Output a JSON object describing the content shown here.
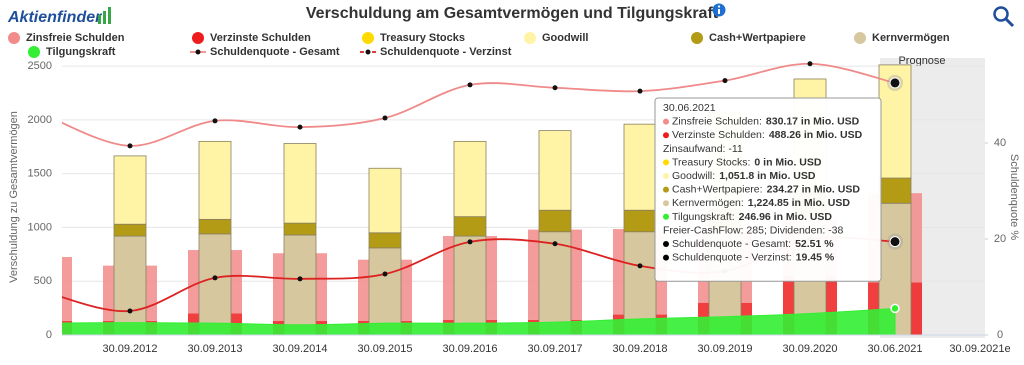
{
  "logo": "Aktienfinder",
  "chart_data": {
    "type": "combo",
    "title": "Verschuldung am Gesamtvermögen und Tilgungskraft",
    "y_label": "Verschuldung zu Gesamtvermögen",
    "y2_label": "Schuldenquote %",
    "annotations": [
      "Prognose"
    ],
    "categories": [
      null,
      "30.09.2012",
      "30.09.2013",
      "30.09.2014",
      "30.09.2015",
      "30.09.2016",
      "30.09.2017",
      "30.09.2018",
      "30.09.2019",
      "30.09.2020",
      "30.06.2021",
      "30.09.2021e"
    ],
    "ylim": [
      0,
      2575
    ],
    "yticks": [
      0,
      500,
      1000,
      1500,
      2000,
      2500
    ],
    "y2lim": [
      0,
      57.7
    ],
    "y2ticks": [
      0,
      20,
      40
    ],
    "grid": true,
    "series": [
      {
        "name": "Zinsfreie Schulden",
        "type": "bar",
        "color": "#f28b8b",
        "values": [
          595,
          515,
          590,
          630,
          570,
          780,
          840,
          795,
          690,
          530,
          830.17,
          null
        ]
      },
      {
        "name": "Verzinste Schulden",
        "type": "bar",
        "color": "#ee1c1c",
        "values": [
          130,
          130,
          200,
          130,
          130,
          140,
          140,
          190,
          300,
          550,
          488.26,
          null
        ]
      },
      {
        "name": "Treasury Stocks",
        "type": "bar",
        "color": "#ffd900",
        "values": [
          null,
          0,
          0,
          0,
          0,
          0,
          0,
          0,
          0,
          0,
          0,
          null
        ]
      },
      {
        "name": "Goodwill",
        "type": "bar",
        "color": "#fff3a6",
        "values": [
          null,
          635,
          725,
          740,
          600,
          700,
          740,
          800,
          900,
          1060,
          1051.8,
          null
        ]
      },
      {
        "name": "Cash+Wertpapiere",
        "type": "bar",
        "color": "#b39b15",
        "values": [
          null,
          110,
          135,
          110,
          140,
          180,
          200,
          200,
          200,
          220,
          234.27,
          null
        ]
      },
      {
        "name": "Kernvermögen",
        "type": "bar",
        "color": "#d6c79e",
        "values": [
          null,
          920,
          940,
          930,
          810,
          920,
          960,
          960,
          970,
          1100,
          1224.85,
          null
        ]
      },
      {
        "name": "Tilgungskraft",
        "type": "area",
        "color": "#33ee33",
        "values": [
          110,
          115,
          110,
          95,
          110,
          110,
          120,
          150,
          170,
          200,
          246.96,
          null
        ]
      },
      {
        "name": "Schuldenquote - Gesamt",
        "type": "line",
        "axis": "y2",
        "color": "#f08a8a",
        "values": [
          45.8,
          39.4,
          44.6,
          43.3,
          45.2,
          52.1,
          51.5,
          50.8,
          53,
          56.5,
          52.51,
          null
        ]
      },
      {
        "name": "Schuldenquote - Verzinst",
        "type": "line",
        "axis": "y2",
        "color": "#dd2222",
        "values": [
          9,
          5,
          11.9,
          11.7,
          12.7,
          19.4,
          19,
          14.4,
          13.3,
          20,
          19.45,
          null
        ]
      }
    ],
    "tooltip": {
      "rows": [
        {
          "label": "Zinsfreie Schulden:",
          "value": "830.17 in Mio. USD",
          "color": "#f28b8b"
        },
        {
          "label": "Verzinste Schulden:",
          "value": "488.26 in Mio. USD",
          "color": "#ee1c1c"
        },
        {
          "label": "Zinsaufwand: -11"
        },
        {
          "label": "Treasury Stocks:",
          "value": "0 in Mio. USD",
          "color": "#ffd900"
        },
        {
          "label": "Goodwill:",
          "value": "1,051.8 in Mio. USD",
          "color": "#fff3a6"
        },
        {
          "label": "Cash+Wertpapiere:",
          "value": "234.27 in Mio. USD",
          "color": "#b39b15"
        },
        {
          "label": "Kernvermögen:",
          "value": "1,224.85 in Mio. USD",
          "color": "#d6c79e"
        },
        {
          "label": "Tilgungskraft:",
          "value": "246.96 in Mio. USD",
          "color": "#33ee33"
        },
        {
          "label": "Freier-CashFlow: 285; Dividenden: -38"
        },
        {
          "label": "Schuldenquote - Gesamt:",
          "value": "52.51 %",
          "color": "#000000"
        },
        {
          "label": "Schuldenquote - Verzinst:",
          "value": "19.45 %",
          "color": "#000000"
        }
      ]
    }
  }
}
